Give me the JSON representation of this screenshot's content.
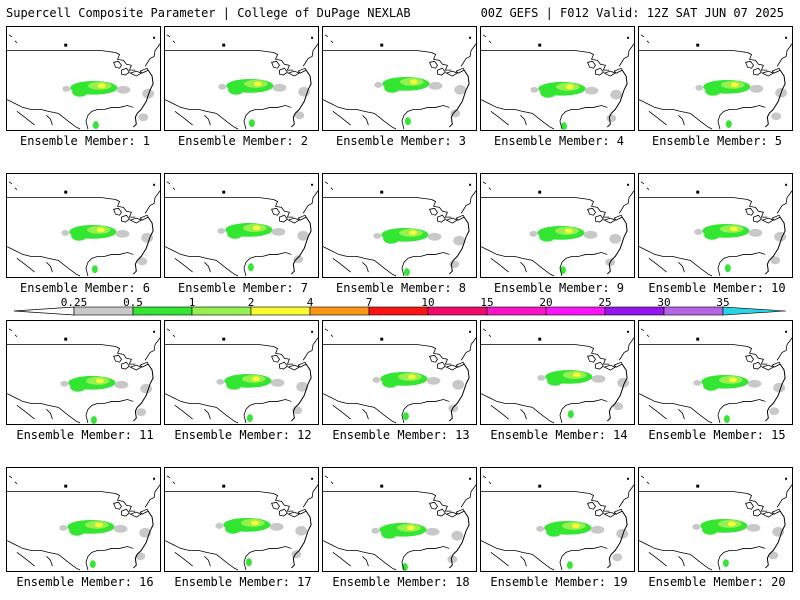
{
  "header": {
    "title": "Supercell Composite Parameter | College of DuPage NEXLAB",
    "run_info": "00Z GEFS | F012 Valid: 12Z SAT JUN 07 2025"
  },
  "members": [
    {
      "label": "Ensemble Member: 1"
    },
    {
      "label": "Ensemble Member: 2"
    },
    {
      "label": "Ensemble Member: 3"
    },
    {
      "label": "Ensemble Member: 4"
    },
    {
      "label": "Ensemble Member: 5"
    },
    {
      "label": "Ensemble Member: 6"
    },
    {
      "label": "Ensemble Member: 7"
    },
    {
      "label": "Ensemble Member: 8"
    },
    {
      "label": "Ensemble Member: 9"
    },
    {
      "label": "Ensemble Member: 10"
    },
    {
      "label": "Ensemble Member: 11"
    },
    {
      "label": "Ensemble Member: 12"
    },
    {
      "label": "Ensemble Member: 13"
    },
    {
      "label": "Ensemble Member: 14"
    },
    {
      "label": "Ensemble Member: 15"
    },
    {
      "label": "Ensemble Member: 16"
    },
    {
      "label": "Ensemble Member: 17"
    },
    {
      "label": "Ensemble Member: 18"
    },
    {
      "label": "Ensemble Member: 19"
    },
    {
      "label": "Ensemble Member: 20"
    }
  ],
  "colorbar": {
    "labels": [
      "0.25",
      "0.5",
      "1",
      "2",
      "4",
      "7",
      "10",
      "15",
      "20",
      "25",
      "30",
      "35"
    ],
    "colors": [
      "#c8c8c8",
      "#32e632",
      "#96f050",
      "#fafa32",
      "#fa9614",
      "#fa1414",
      "#f00a6e",
      "#fa14c8",
      "#fa14fa",
      "#9614f0",
      "#b464e6",
      "#2ad4e6"
    ]
  }
}
